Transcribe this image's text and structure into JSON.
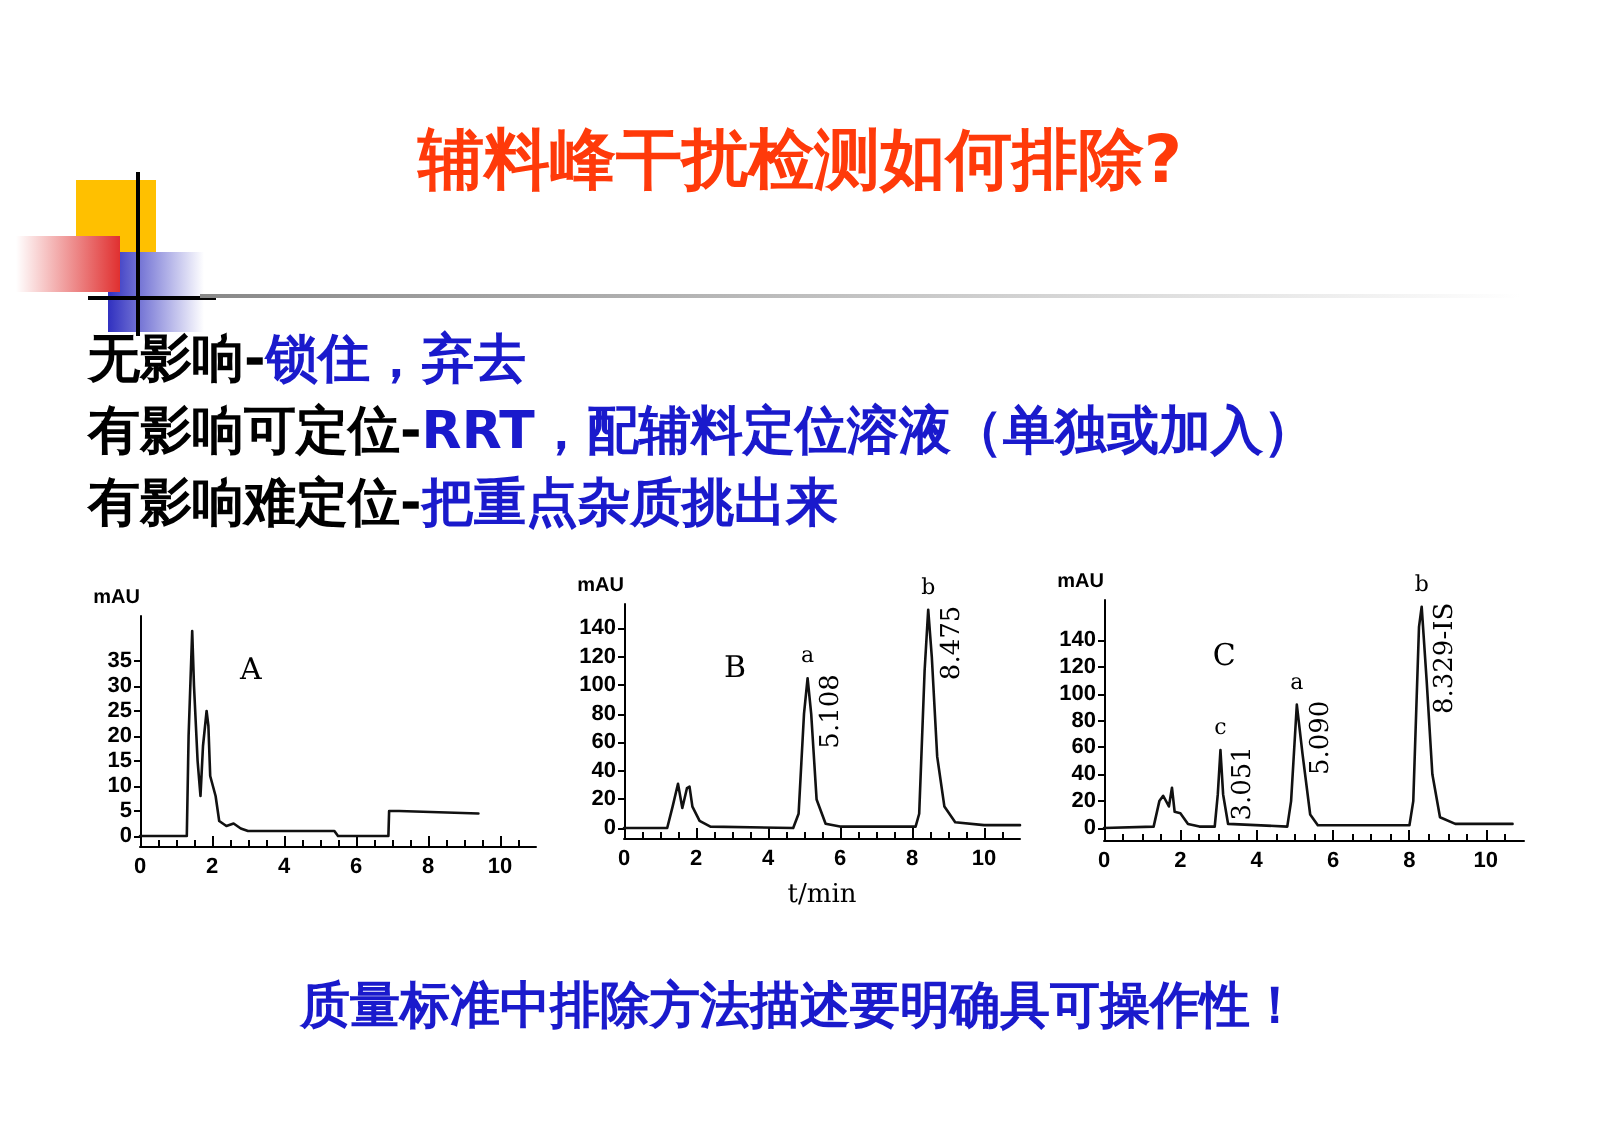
{
  "chart_data": [
    {
      "type": "other",
      "title": "辅料峰干扰检测如何排除?",
      "annotations": [
        "无影响-锁住，弃去",
        "有影响可定位-RRT，配辅料定位溶液（单独或加入）",
        "有影响难定位-把重点杂质挑出来",
        "质量标准中排除方法描述要明确具可操作性！"
      ]
    },
    {
      "type": "line",
      "ylabel": "mAU",
      "annotations": [
        "A"
      ],
      "xlim": [
        0,
        11
      ],
      "xticks": [
        0,
        2,
        4,
        6,
        8,
        10
      ],
      "ylim": [
        -2,
        44
      ],
      "yticks": [
        0,
        5,
        10,
        15,
        20,
        25,
        30,
        35
      ],
      "grid": false,
      "marker": "none",
      "line_style": "solid",
      "series": [
        {
          "color": "#111111",
          "x": [
            0,
            1.3,
            1.35,
            1.45,
            1.5,
            1.6,
            1.68,
            1.75,
            1.85,
            1.9,
            1.95,
            2.1,
            2.2,
            2.4,
            2.6,
            2.8,
            3,
            4,
            5.3,
            5.4,
            5.5,
            6.9,
            6.92,
            7.2,
            9.4
          ],
          "values": [
            0,
            0,
            20,
            41,
            30,
            15,
            8,
            18,
            25,
            22,
            12,
            8,
            3,
            2,
            2.5,
            1.5,
            1,
            1,
            1,
            1,
            0,
            0,
            5,
            5,
            4.5
          ]
        }
      ]
    },
    {
      "type": "line",
      "ylabel": "mAU",
      "xlabel": "t/min",
      "annotations": [
        "B",
        {
          "text": "a",
          "x": 5.1,
          "y": 105
        },
        {
          "text": "5.108",
          "x": 5.108,
          "y": 105
        },
        {
          "text": "b",
          "x": 8.45,
          "y": 153
        },
        {
          "text": "8.475",
          "x": 8.475,
          "y": 153
        }
      ],
      "xlim": [
        0,
        11
      ],
      "xticks": [
        0,
        2,
        4,
        6,
        8,
        10
      ],
      "ylim": [
        -7,
        157
      ],
      "yticks": [
        0,
        20,
        40,
        60,
        80,
        100,
        120,
        140
      ],
      "grid": false,
      "marker": "none",
      "line_style": "solid",
      "series": [
        {
          "color": "#111111",
          "x": [
            0,
            1.2,
            1.35,
            1.5,
            1.62,
            1.75,
            1.82,
            1.9,
            2.1,
            2.4,
            4.7,
            4.85,
            5,
            5.1,
            5.2,
            5.35,
            5.6,
            6,
            8.1,
            8.2,
            8.35,
            8.45,
            8.55,
            8.7,
            8.9,
            9.2,
            10,
            11
          ],
          "values": [
            0,
            0,
            15,
            31,
            14,
            28,
            29,
            15,
            5,
            1,
            0,
            10,
            80,
            105,
            80,
            20,
            3,
            1,
            1,
            10,
            110,
            153,
            120,
            50,
            15,
            4,
            2,
            2
          ]
        }
      ]
    },
    {
      "type": "line",
      "ylabel": "mAU",
      "annotations": [
        "C",
        {
          "text": "c",
          "x": 3.05,
          "y": 58
        },
        {
          "text": "3.051",
          "x": 3.051,
          "y": 58
        },
        {
          "text": "a",
          "x": 5.05,
          "y": 92
        },
        {
          "text": "5.090",
          "x": 5.09,
          "y": 92
        },
        {
          "text": "b",
          "x": 8.32,
          "y": 165
        },
        {
          "text": "8.329-IS",
          "x": 8.329,
          "y": 165
        }
      ],
      "xlim": [
        0,
        11
      ],
      "xticks": [
        0,
        2,
        4,
        6,
        8,
        10
      ],
      "ylim": [
        -9,
        170
      ],
      "yticks": [
        0,
        20,
        40,
        60,
        80,
        100,
        120,
        140
      ],
      "grid": false,
      "marker": "none",
      "line_style": "solid",
      "series": [
        {
          "color": "#111111",
          "x": [
            0,
            1.3,
            1.45,
            1.55,
            1.7,
            1.78,
            1.85,
            2,
            2.2,
            2.5,
            2.9,
            2.98,
            3.05,
            3.12,
            3.25,
            4.8,
            4.9,
            5.05,
            5.2,
            5.4,
            5.6,
            8,
            8.1,
            8.25,
            8.32,
            8.45,
            8.6,
            8.8,
            9.2,
            10.7
          ],
          "values": [
            0,
            1,
            20,
            24,
            16,
            30,
            12,
            11,
            3,
            1,
            1,
            25,
            58,
            25,
            3,
            1,
            20,
            92,
            55,
            10,
            2,
            2,
            20,
            150,
            165,
            110,
            40,
            8,
            3,
            3
          ]
        }
      ]
    }
  ]
}
